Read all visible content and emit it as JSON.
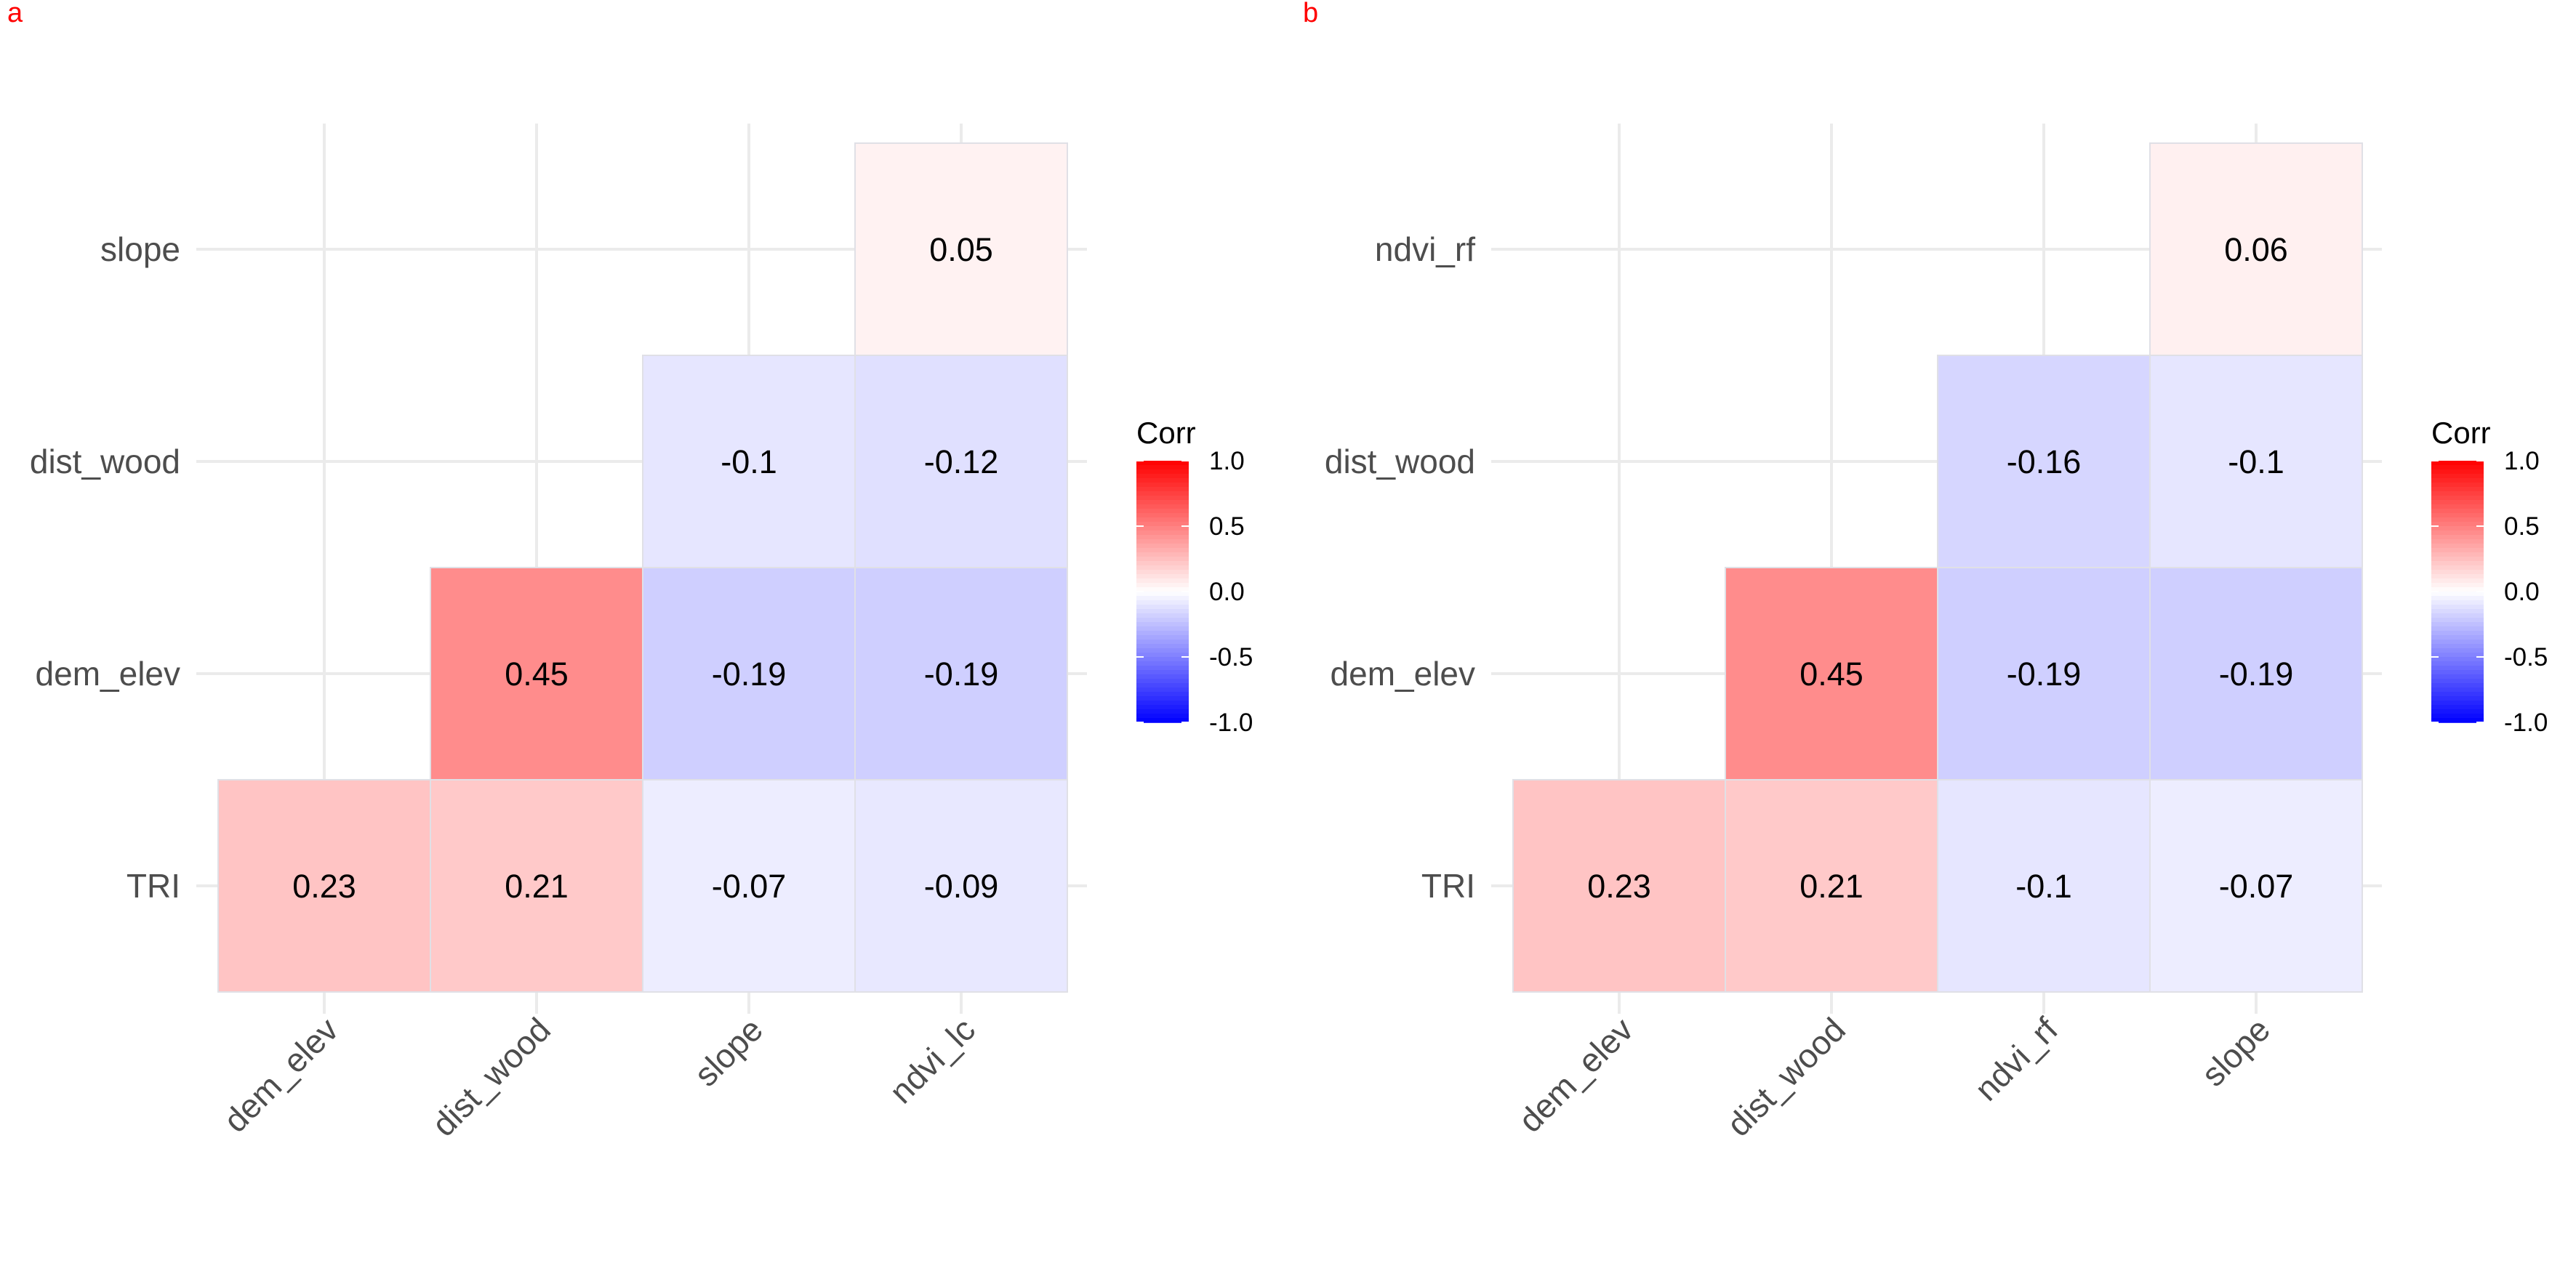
{
  "chart_data": [
    {
      "type": "heatmap",
      "panel_label": "a",
      "x_categories": [
        "dem_elev",
        "dist_wood",
        "slope",
        "ndvi_lc"
      ],
      "y_categories": [
        "TRI",
        "dem_elev",
        "dist_wood",
        "slope"
      ],
      "cells": [
        {
          "x": "dem_elev",
          "y": "TRI",
          "value": 0.23,
          "label": "0.23"
        },
        {
          "x": "dist_wood",
          "y": "TRI",
          "value": 0.21,
          "label": "0.21"
        },
        {
          "x": "slope",
          "y": "TRI",
          "value": -0.07,
          "label": "-0.07"
        },
        {
          "x": "ndvi_lc",
          "y": "TRI",
          "value": -0.09,
          "label": "-0.09"
        },
        {
          "x": "dist_wood",
          "y": "dem_elev",
          "value": 0.45,
          "label": "0.45"
        },
        {
          "x": "slope",
          "y": "dem_elev",
          "value": -0.19,
          "label": "-0.19"
        },
        {
          "x": "ndvi_lc",
          "y": "dem_elev",
          "value": -0.19,
          "label": "-0.19"
        },
        {
          "x": "slope",
          "y": "dist_wood",
          "value": -0.1,
          "label": "-0.1"
        },
        {
          "x": "ndvi_lc",
          "y": "dist_wood",
          "value": -0.12,
          "label": "-0.12"
        },
        {
          "x": "ndvi_lc",
          "y": "slope",
          "value": 0.05,
          "label": "0.05"
        }
      ],
      "legend": {
        "title": "Corr",
        "range": [
          -1.0,
          1.0
        ],
        "ticks": [
          "1.0",
          "0.5",
          "0.0",
          "-0.5",
          "-1.0"
        ],
        "colors": {
          "low": "#0000ff",
          "mid": "#ffffff",
          "high": "#ff0000"
        }
      },
      "grid": true
    },
    {
      "type": "heatmap",
      "panel_label": "b",
      "x_categories": [
        "dem_elev",
        "dist_wood",
        "ndvi_rf",
        "slope"
      ],
      "y_categories": [
        "TRI",
        "dem_elev",
        "dist_wood",
        "ndvi_rf"
      ],
      "cells": [
        {
          "x": "dem_elev",
          "y": "TRI",
          "value": 0.23,
          "label": "0.23"
        },
        {
          "x": "dist_wood",
          "y": "TRI",
          "value": 0.21,
          "label": "0.21"
        },
        {
          "x": "ndvi_rf",
          "y": "TRI",
          "value": -0.1,
          "label": "-0.1"
        },
        {
          "x": "slope",
          "y": "TRI",
          "value": -0.07,
          "label": "-0.07"
        },
        {
          "x": "dist_wood",
          "y": "dem_elev",
          "value": 0.45,
          "label": "0.45"
        },
        {
          "x": "ndvi_rf",
          "y": "dem_elev",
          "value": -0.19,
          "label": "-0.19"
        },
        {
          "x": "slope",
          "y": "dem_elev",
          "value": -0.19,
          "label": "-0.19"
        },
        {
          "x": "ndvi_rf",
          "y": "dist_wood",
          "value": -0.16,
          "label": "-0.16"
        },
        {
          "x": "slope",
          "y": "dist_wood",
          "value": -0.1,
          "label": "-0.1"
        },
        {
          "x": "slope",
          "y": "ndvi_rf",
          "value": 0.06,
          "label": "0.06"
        }
      ],
      "legend": {
        "title": "Corr",
        "range": [
          -1.0,
          1.0
        ],
        "ticks": [
          "1.0",
          "0.5",
          "0.0",
          "-0.5",
          "-1.0"
        ],
        "colors": {
          "low": "#0000ff",
          "mid": "#ffffff",
          "high": "#ff0000"
        }
      },
      "grid": true
    }
  ]
}
